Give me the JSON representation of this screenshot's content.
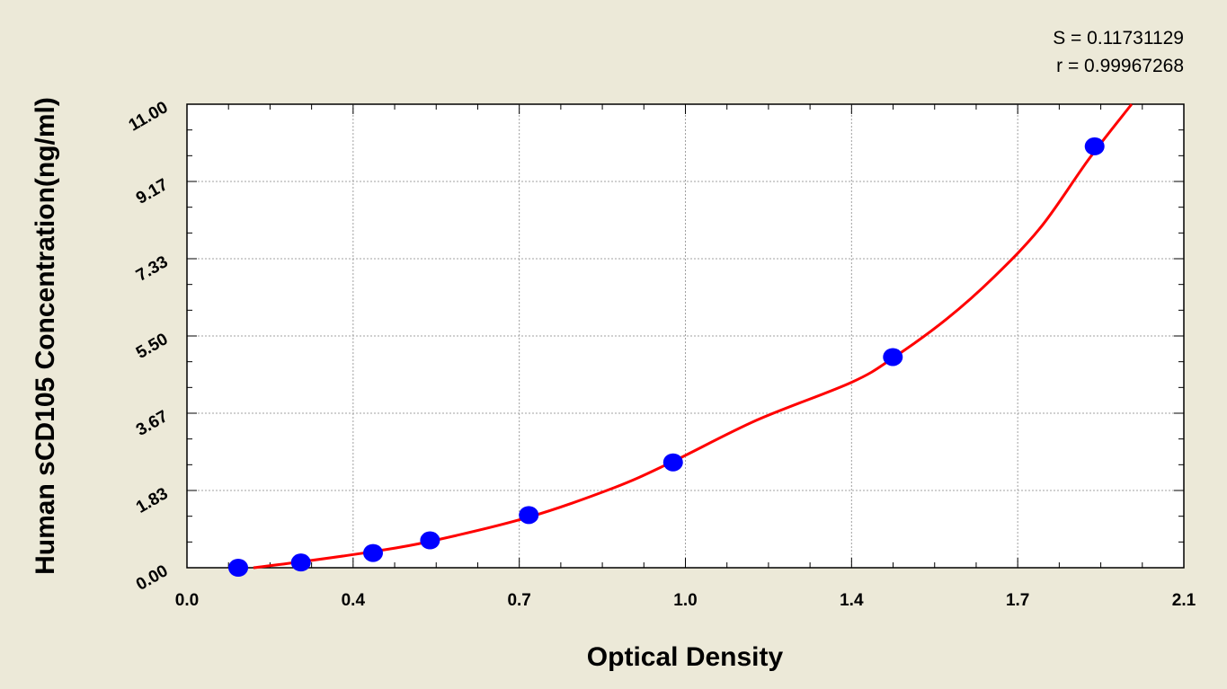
{
  "chart_data": {
    "type": "scatter",
    "title": "",
    "xlabel": "Optical Density",
    "ylabel": "Human sCD105 Concentration(ng/ml)",
    "x_ticks": [
      "0.0",
      "0.4",
      "0.7",
      "1.0",
      "1.4",
      "1.7",
      "2.1"
    ],
    "y_ticks": [
      "0.00",
      "1.83",
      "3.67",
      "5.50",
      "7.33",
      "9.17",
      "11.00"
    ],
    "xlim": [
      0.0,
      2.1
    ],
    "ylim": [
      0.0,
      11.0
    ],
    "grid": true,
    "stats": [
      "S = 0.11731129",
      "r = 0.99967268"
    ],
    "series": [
      {
        "kind": "points",
        "color": "#0000FF",
        "x": [
          0.108,
          0.24,
          0.392,
          0.512,
          0.72,
          1.024,
          1.487,
          1.912
        ],
        "y": [
          0.0,
          0.125,
          0.35,
          0.65,
          1.25,
          2.5,
          5.0,
          10.0
        ]
      },
      {
        "kind": "fit-curve",
        "color": "#FF0000",
        "x": [
          0.14,
          0.24,
          0.39,
          0.51,
          0.72,
          0.9,
          1.02,
          1.2,
          1.4,
          1.49,
          1.6,
          1.7,
          1.8,
          1.9,
          1.99
        ],
        "y": [
          0.0,
          0.14,
          0.38,
          0.62,
          1.2,
          1.9,
          2.5,
          3.5,
          4.4,
          5.0,
          5.9,
          6.9,
          8.1,
          9.7,
          11.0
        ]
      }
    ]
  }
}
